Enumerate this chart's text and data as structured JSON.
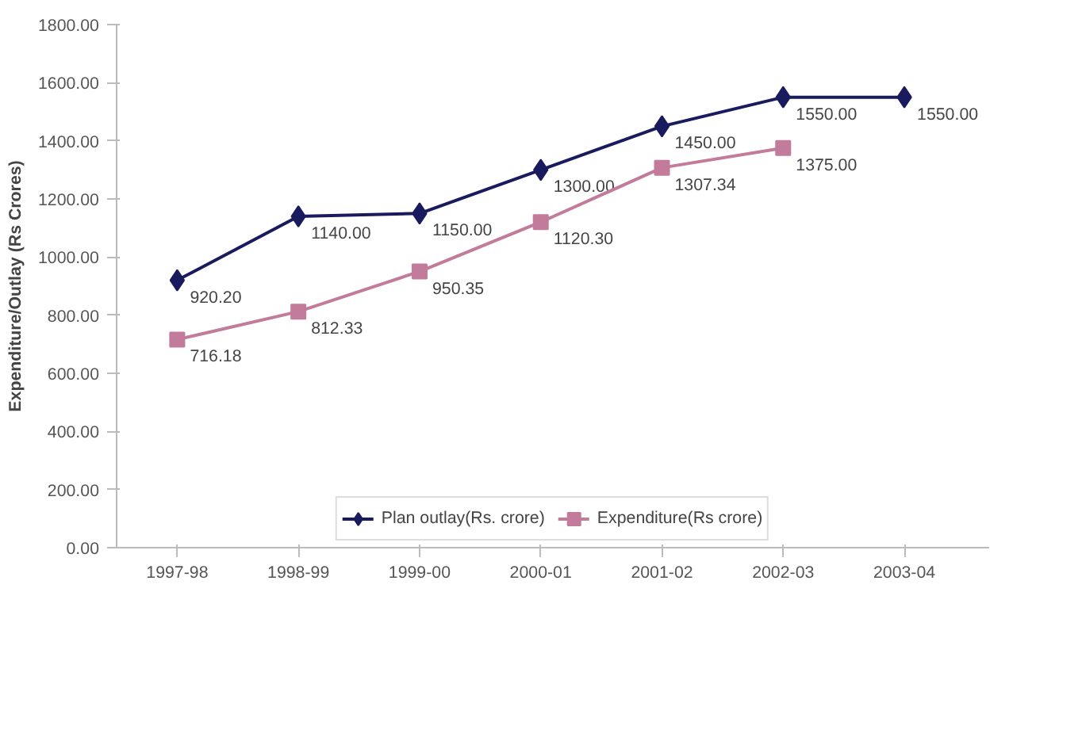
{
  "chart_data": {
    "type": "line",
    "ylabel": "Expenditure/Outlay (Rs Crores)",
    "categories": [
      "1997-98",
      "1998-99",
      "1999-00",
      "2000-01",
      "2001-02",
      "2002-03",
      "2003-04"
    ],
    "series": [
      {
        "name": "Plan outlay(Rs. crore)",
        "color": "#1a1a5e",
        "marker": "diamond",
        "values": [
          920.2,
          1140.0,
          1150.0,
          1300.0,
          1450.0,
          1550.0,
          1550.0
        ],
        "value_labels": [
          "920.20",
          "1140.00",
          "1150.00",
          "1300.00",
          "1450.00",
          "1550.00",
          "1550.00"
        ]
      },
      {
        "name": "Expenditure(Rs crore)",
        "color": "#c27b9a",
        "marker": "square",
        "values": [
          716.18,
          812.33,
          950.35,
          1120.3,
          1307.34,
          1375.0,
          null
        ],
        "value_labels": [
          "716.18",
          "812.33",
          "950.35",
          "1120.30",
          "1307.34",
          "1375.00",
          null
        ]
      }
    ],
    "ylim": [
      0,
      1800
    ],
    "yticks": [
      {
        "value": 0,
        "label": "0.00"
      },
      {
        "value": 200,
        "label": "200.00"
      },
      {
        "value": 400,
        "label": "400.00"
      },
      {
        "value": 600,
        "label": "600.00"
      },
      {
        "value": 800,
        "label": "800.00"
      },
      {
        "value": 1000,
        "label": "1000.00"
      },
      {
        "value": 1200,
        "label": "1200.00"
      },
      {
        "value": 1400,
        "label": "1400.00"
      },
      {
        "value": 1600,
        "label": "1600.00"
      },
      {
        "value": 1800,
        "label": "1800.00"
      }
    ],
    "grid": false,
    "legend": "bottom"
  }
}
